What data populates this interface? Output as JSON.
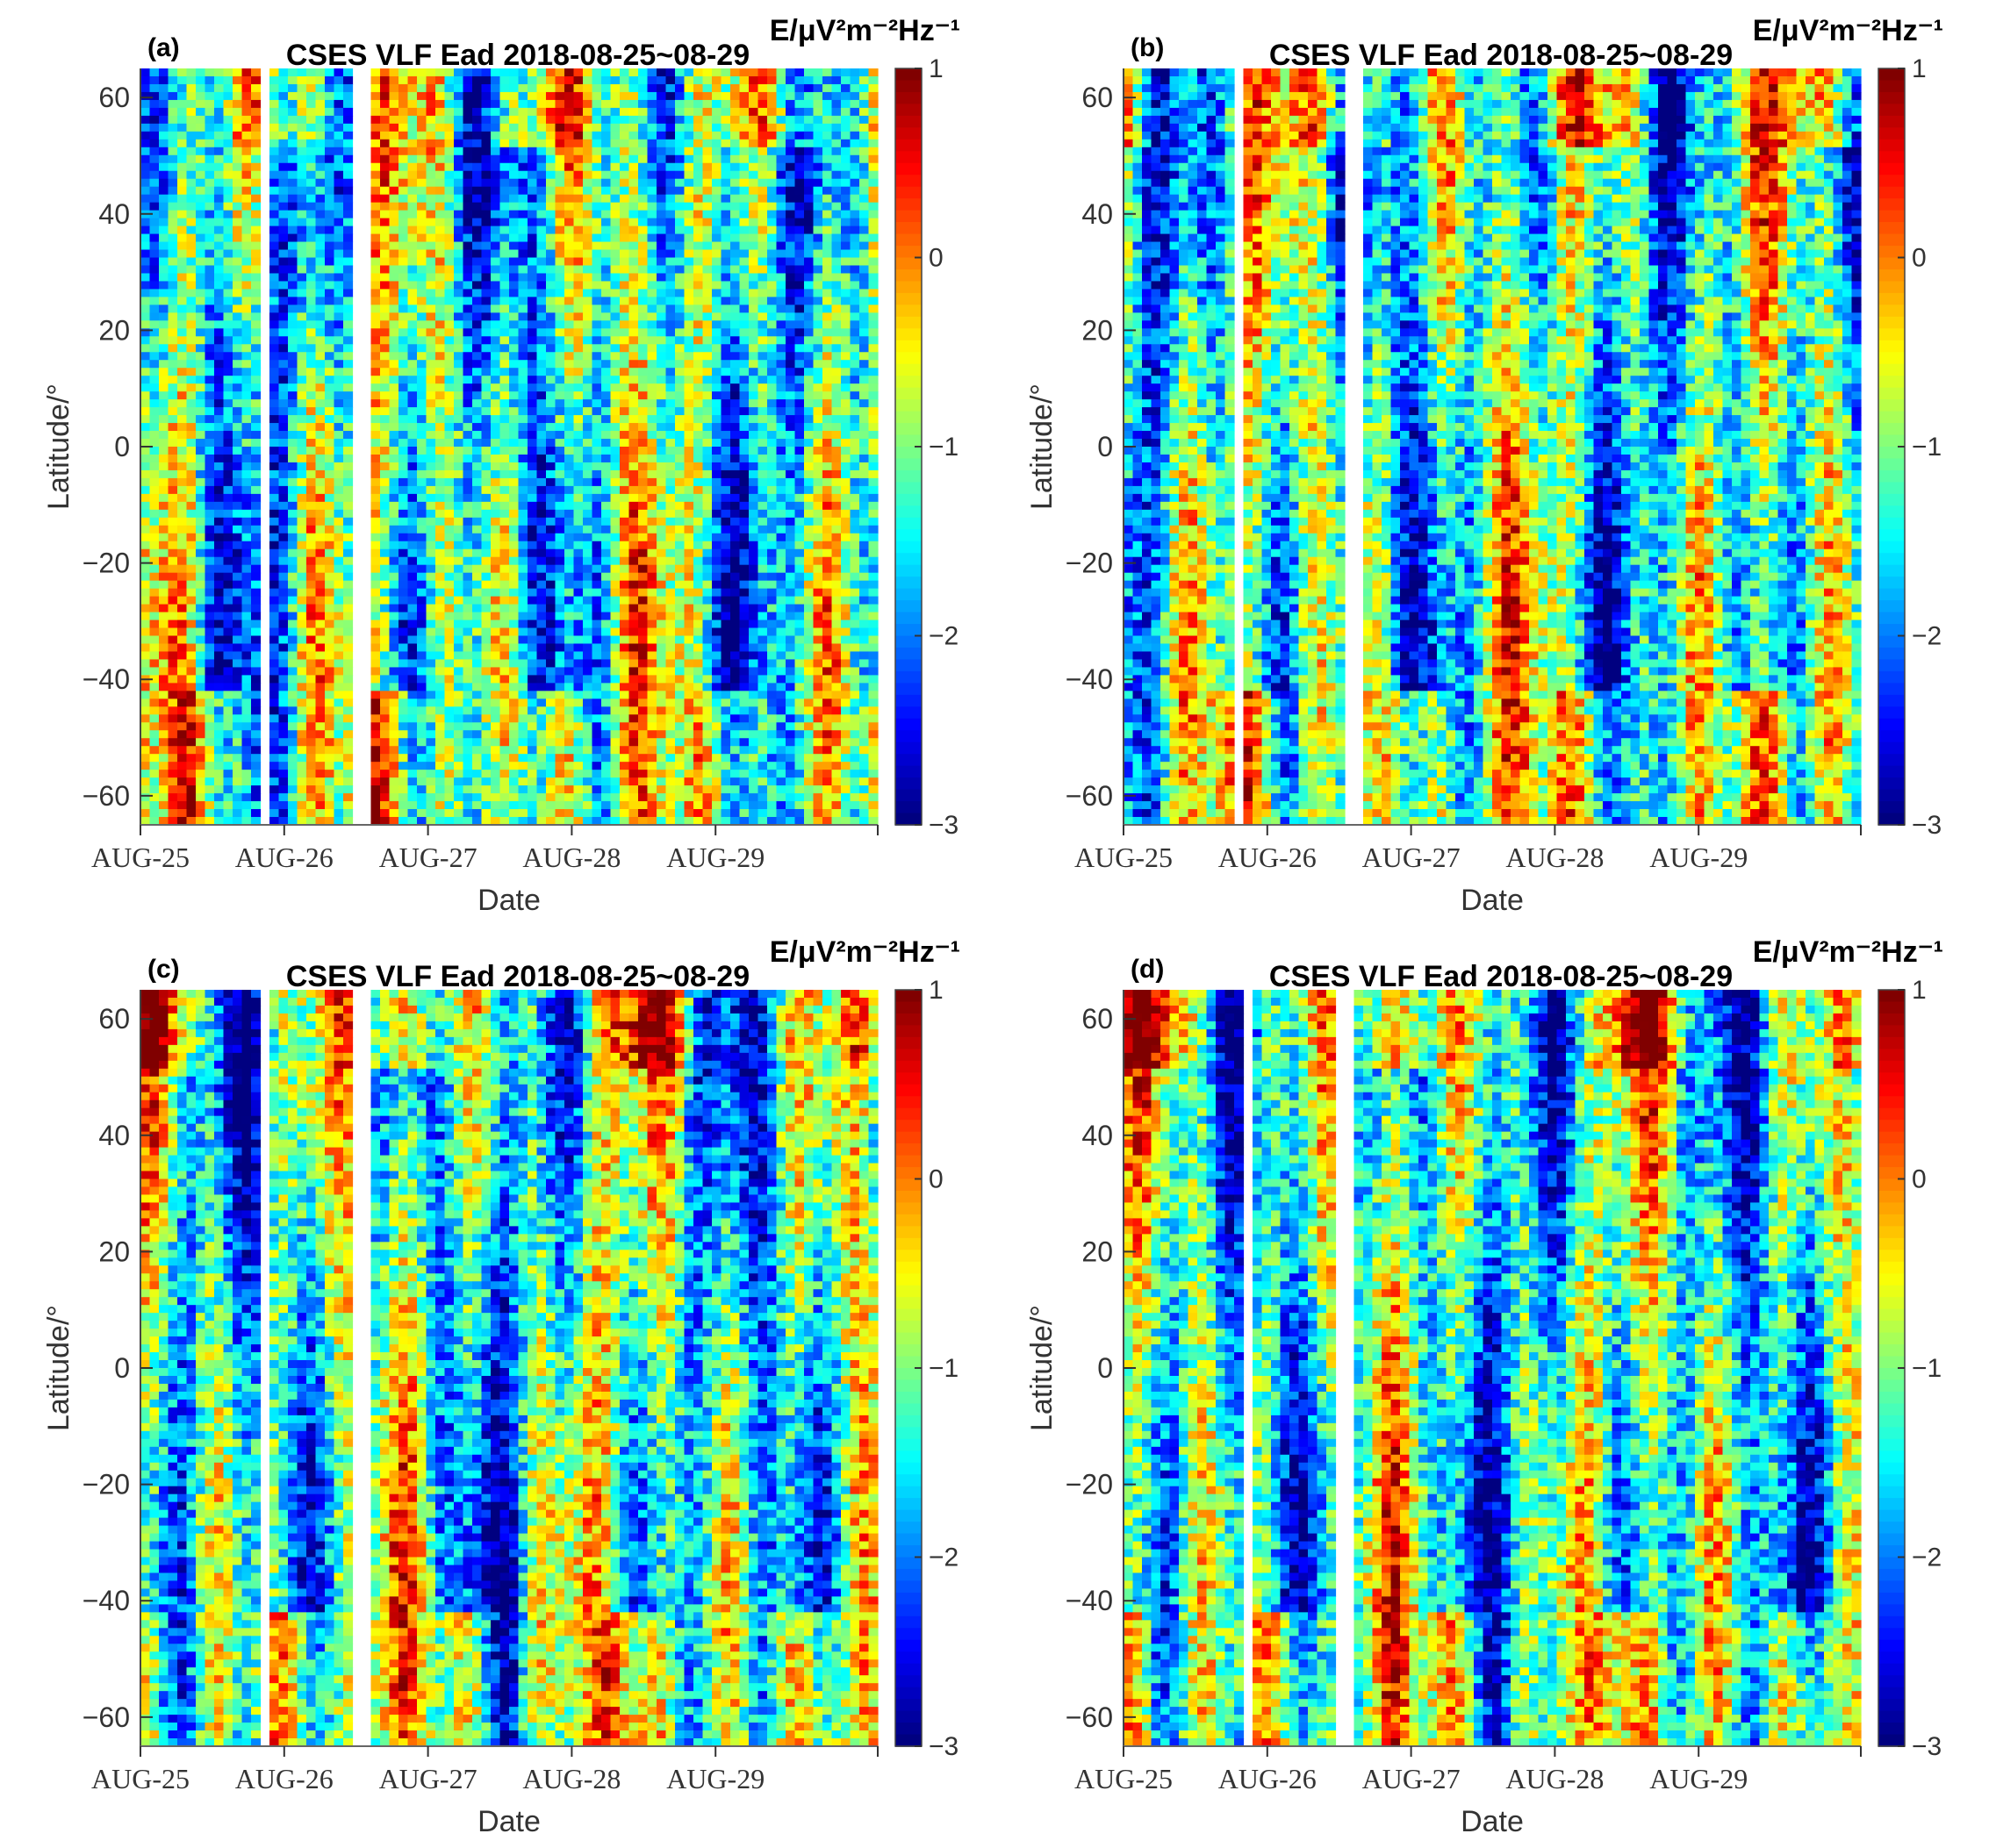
{
  "figure": {
    "panels": [
      {
        "letter": "(a)",
        "title": "CSES VLF Ead 2018-08-25~08-29",
        "unit_label": "E/μV²m⁻²Hz⁻¹",
        "xlabel": "Date",
        "ylabel": "Latitude/°",
        "gaps": [
          [
            0.163,
            0.175
          ],
          [
            0.284,
            0.318
          ]
        ],
        "seed": 11
      },
      {
        "letter": "(b)",
        "title": "CSES VLF Ead 2018-08-25~08-29",
        "unit_label": "E/μV²m⁻²Hz⁻¹",
        "xlabel": "Date",
        "ylabel": "Latitude/°",
        "gaps": [
          [
            0.155,
            0.167
          ],
          [
            0.295,
            0.325
          ]
        ],
        "seed": 23
      },
      {
        "letter": "(c)",
        "title": "CSES VLF Ead 2018-08-25~08-29",
        "unit_label": "E/μV²m⁻²Hz⁻¹",
        "xlabel": "Date",
        "ylabel": "Latitude/°",
        "gaps": [
          [
            0.158,
            0.172
          ],
          [
            0.288,
            0.318
          ]
        ],
        "seed": 37
      },
      {
        "letter": "(d)",
        "title": "CSES VLF Ead 2018-08-25~08-29",
        "unit_label": "E/μV²m⁻²Hz⁻¹",
        "xlabel": "Date",
        "ylabel": "Latitude/°",
        "gaps": [
          [
            0.168,
            0.18
          ],
          [
            0.292,
            0.315
          ]
        ],
        "seed": 53
      }
    ]
  },
  "chart_data": [
    {
      "type": "heatmap",
      "title": "CSES VLF Ead 2018-08-25~08-29",
      "xlabel": "Date",
      "ylabel": "Latitude/°",
      "colorbar_label": "E/μV²m⁻²Hz⁻¹",
      "x_ticks": [
        "AUG-25",
        "AUG-26",
        "AUG-27",
        "AUG-28",
        "AUG-29"
      ],
      "y_ticks": [
        60,
        40,
        20,
        0,
        -20,
        -40,
        -60
      ],
      "ylim": [
        -65,
        65
      ],
      "colorbar_ticks": [
        1,
        0,
        -1,
        -2,
        -3
      ],
      "colorbar_range": [
        -3,
        1
      ],
      "colormap": "jet",
      "grid": false
    },
    {
      "type": "heatmap",
      "title": "CSES VLF Ead 2018-08-25~08-29",
      "xlabel": "Date",
      "ylabel": "Latitude/°",
      "colorbar_label": "E/μV²m⁻²Hz⁻¹",
      "x_ticks": [
        "AUG-25",
        "AUG-26",
        "AUG-27",
        "AUG-28",
        "AUG-29"
      ],
      "y_ticks": [
        60,
        40,
        20,
        0,
        -20,
        -40,
        -60
      ],
      "ylim": [
        -65,
        65
      ],
      "colorbar_ticks": [
        1,
        0,
        -1,
        -2,
        -3
      ],
      "colorbar_range": [
        -3,
        1
      ],
      "colormap": "jet",
      "grid": false
    },
    {
      "type": "heatmap",
      "title": "CSES VLF Ead 2018-08-25~08-29",
      "xlabel": "Date",
      "ylabel": "Latitude/°",
      "colorbar_label": "E/μV²m⁻²Hz⁻¹",
      "x_ticks": [
        "AUG-25",
        "AUG-26",
        "AUG-27",
        "AUG-28",
        "AUG-29"
      ],
      "y_ticks": [
        60,
        40,
        20,
        0,
        -20,
        -40,
        -60
      ],
      "ylim": [
        -65,
        65
      ],
      "colorbar_ticks": [
        1,
        0,
        -1,
        -2,
        -3
      ],
      "colorbar_range": [
        -3,
        1
      ],
      "colormap": "jet",
      "grid": false
    },
    {
      "type": "heatmap",
      "title": "CSES VLF Ead 2018-08-25~08-29",
      "xlabel": "Date",
      "ylabel": "Latitude/°",
      "colorbar_label": "E/μV²m⁻²Hz⁻¹",
      "x_ticks": [
        "AUG-25",
        "AUG-26",
        "AUG-27",
        "AUG-28",
        "AUG-29"
      ],
      "y_ticks": [
        60,
        40,
        20,
        0,
        -20,
        -40,
        -60
      ],
      "ylim": [
        -65,
        65
      ],
      "colorbar_ticks": [
        1,
        0,
        -1,
        -2,
        -3
      ],
      "colorbar_range": [
        -3,
        1
      ],
      "colormap": "jet",
      "grid": false
    }
  ]
}
